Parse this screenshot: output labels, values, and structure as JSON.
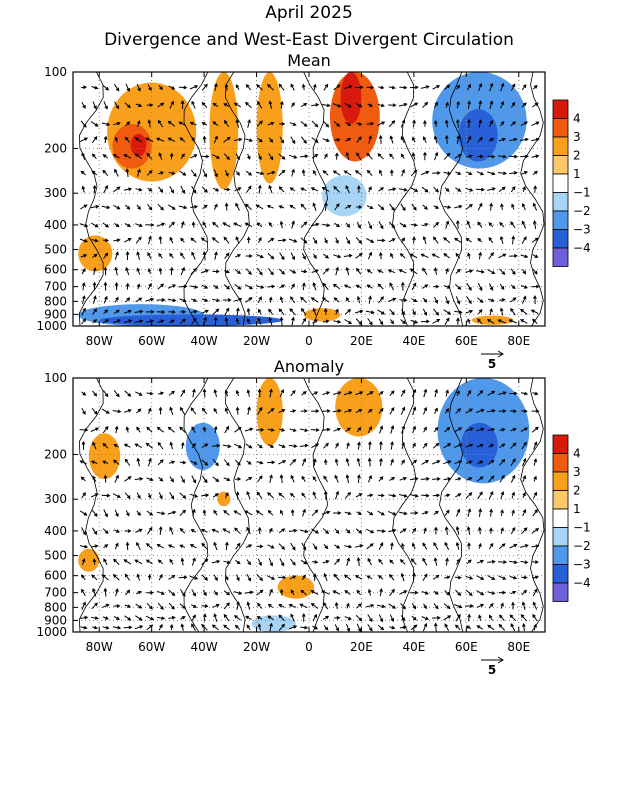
{
  "title": "April 2025",
  "subtitle": "Divergence and West-East Divergent Circulation",
  "chart_data": [
    {
      "type": "heatmap",
      "title": "Mean",
      "x_ticks": [
        "80W",
        "60W",
        "40W",
        "20W",
        "0",
        "20E",
        "40E",
        "60E",
        "80E"
      ],
      "x_values": [
        -80,
        -60,
        -40,
        -20,
        0,
        20,
        40,
        60,
        80
      ],
      "xlim": [
        -90,
        90
      ],
      "y_ticks": [
        "100",
        "200",
        "300",
        "400",
        "500",
        "600",
        "700",
        "800",
        "900",
        "1000"
      ],
      "y_values": [
        100,
        200,
        300,
        400,
        500,
        600,
        700,
        800,
        900,
        1000
      ],
      "ylim": [
        1000,
        100
      ],
      "y_scale": "log (pressure)",
      "grid": true,
      "reference_vector_label": "5",
      "colorbar": {
        "labels": [
          "4",
          "3",
          "2",
          "1",
          "−1",
          "−2",
          "−3",
          "−4"
        ],
        "colors": [
          "#d81a0c",
          "#ef5c10",
          "#f8a01c",
          "#fbc86a",
          "#ffffff",
          "#a8d4f5",
          "#4f98ea",
          "#2860d8",
          "#6e60d8"
        ]
      },
      "regions": [
        {
          "lon": [
            -77,
            -43
          ],
          "p": [
            110,
            270
          ],
          "value": 2
        },
        {
          "lon": [
            -75,
            -60
          ],
          "p": [
            160,
            240
          ],
          "value": 3
        },
        {
          "lon": [
            -68,
            -62
          ],
          "p": [
            175,
            215
          ],
          "value": 4
        },
        {
          "lon": [
            -38,
            -27
          ],
          "p": [
            100,
            290
          ],
          "value": 2
        },
        {
          "lon": [
            -20,
            -10
          ],
          "p": [
            100,
            275
          ],
          "value": 2
        },
        {
          "lon": [
            8,
            27
          ],
          "p": [
            100,
            225
          ],
          "value": 3
        },
        {
          "lon": [
            12,
            20
          ],
          "p": [
            100,
            160
          ],
          "value": 4
        },
        {
          "lon": [
            47,
            83
          ],
          "p": [
            100,
            240
          ],
          "value": -2
        },
        {
          "lon": [
            57,
            72
          ],
          "p": [
            140,
            225
          ],
          "value": -3
        },
        {
          "lon": [
            5,
            22
          ],
          "p": [
            255,
            370
          ],
          "value": -1
        },
        {
          "lon": [
            -88,
            -75
          ],
          "p": [
            440,
            610
          ],
          "value": 2
        },
        {
          "lon": [
            -88,
            -40
          ],
          "p": [
            820,
            1000
          ],
          "value": -2
        },
        {
          "lon": [
            -80,
            -10
          ],
          "p": [
            900,
            1000
          ],
          "value": -3
        },
        {
          "lon": [
            -2,
            12
          ],
          "p": [
            850,
            960
          ],
          "value": 2
        },
        {
          "lon": [
            62,
            78
          ],
          "p": [
            910,
            990
          ],
          "value": 2
        }
      ],
      "contours_lon": [
        -83,
        -43,
        -27,
        3,
        37,
        55,
        86
      ]
    },
    {
      "type": "heatmap",
      "title": "Anomaly",
      "x_ticks": [
        "80W",
        "60W",
        "40W",
        "20W",
        "0",
        "20E",
        "40E",
        "60E",
        "80E"
      ],
      "x_values": [
        -80,
        -60,
        -40,
        -20,
        0,
        20,
        40,
        60,
        80
      ],
      "xlim": [
        -90,
        90
      ],
      "y_ticks": [
        "100",
        "200",
        "300",
        "400",
        "500",
        "600",
        "700",
        "800",
        "900",
        "1000"
      ],
      "y_values": [
        100,
        200,
        300,
        400,
        500,
        600,
        700,
        800,
        900,
        1000
      ],
      "ylim": [
        1000,
        100
      ],
      "y_scale": "log (pressure)",
      "grid": true,
      "reference_vector_label": "5",
      "colorbar": {
        "labels": [
          "4",
          "3",
          "2",
          "1",
          "−1",
          "−2",
          "−3",
          "−4"
        ],
        "colors": [
          "#d81a0c",
          "#ef5c10",
          "#f8a01c",
          "#fbc86a",
          "#ffffff",
          "#a8d4f5",
          "#4f98ea",
          "#2860d8",
          "#6e60d8"
        ]
      },
      "regions": [
        {
          "lon": [
            -20,
            -10
          ],
          "p": [
            100,
            185
          ],
          "value": 2
        },
        {
          "lon": [
            10,
            28
          ],
          "p": [
            100,
            170
          ],
          "value": 2
        },
        {
          "lon": [
            49,
            84
          ],
          "p": [
            100,
            260
          ],
          "value": -2
        },
        {
          "lon": [
            58,
            72
          ],
          "p": [
            150,
            225
          ],
          "value": -3
        },
        {
          "lon": [
            -47,
            -34
          ],
          "p": [
            150,
            230
          ],
          "value": -2
        },
        {
          "lon": [
            -84,
            -72
          ],
          "p": [
            165,
            250
          ],
          "value": 2
        },
        {
          "lon": [
            -35,
            -30
          ],
          "p": [
            280,
            320
          ],
          "value": 2
        },
        {
          "lon": [
            -88,
            -80
          ],
          "p": [
            470,
            580
          ],
          "value": 2
        },
        {
          "lon": [
            -12,
            2
          ],
          "p": [
            600,
            740
          ],
          "value": 2
        },
        {
          "lon": [
            -22,
            -5
          ],
          "p": [
            860,
            1000
          ],
          "value": -1
        }
      ],
      "contours_lon": [
        -83,
        -43,
        -27,
        3,
        37,
        55,
        86
      ]
    }
  ]
}
